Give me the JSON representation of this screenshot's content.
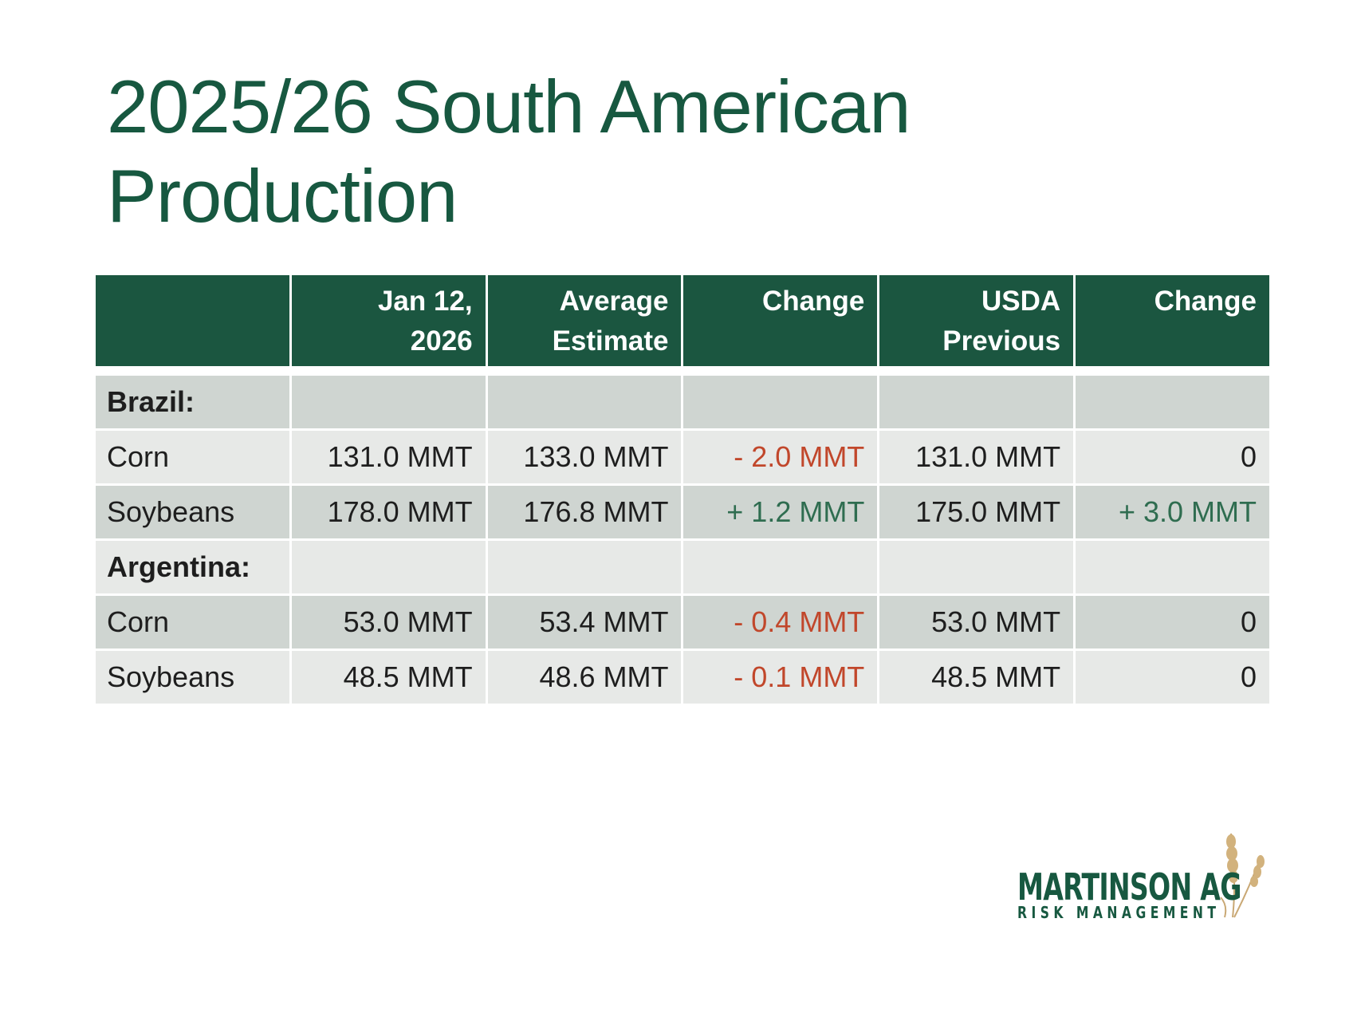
{
  "title_line1": "2025/26 South American",
  "title_line2": "Production",
  "table": {
    "headers": [
      "",
      "Jan 12,\n2026",
      "Average\nEstimate",
      "Change",
      "USDA\nPrevious",
      "Change"
    ],
    "header_lines": [
      [
        "",
        ""
      ],
      [
        "Jan 12,",
        "2026"
      ],
      [
        "Average",
        "Estimate"
      ],
      [
        "Change",
        ""
      ],
      [
        "USDA",
        "Previous"
      ],
      [
        "Change",
        ""
      ]
    ],
    "rows": [
      {
        "label": "Brazil:",
        "cells": [
          "",
          "",
          "",
          "",
          ""
        ],
        "section": true
      },
      {
        "label": "Corn",
        "cells": [
          "131.0 MMT",
          "133.0 MMT",
          "- 2.0 MMT",
          "131.0 MMT",
          "0"
        ]
      },
      {
        "label": "Soybeans",
        "cells": [
          "178.0 MMT",
          "176.8 MMT",
          "+ 1.2 MMT",
          "175.0 MMT",
          "+ 3.0 MMT"
        ]
      },
      {
        "label": "Argentina:",
        "cells": [
          "",
          "",
          "",
          "",
          ""
        ],
        "section": true
      },
      {
        "label": "Corn",
        "cells": [
          "53.0 MMT",
          "53.4 MMT",
          "- 0.4 MMT",
          "53.0 MMT",
          "0"
        ]
      },
      {
        "label": "Soybeans",
        "cells": [
          "48.5 MMT",
          "48.6 MMT",
          "- 0.1 MMT",
          "48.5 MMT",
          "0"
        ]
      }
    ]
  },
  "logo": {
    "line1": "MARTINSON AG",
    "line2": "RISK MANAGEMENT"
  },
  "colors": {
    "header": "#1b5640",
    "title": "#175840",
    "negative": "#c1472b",
    "positive": "#2f6d50"
  }
}
